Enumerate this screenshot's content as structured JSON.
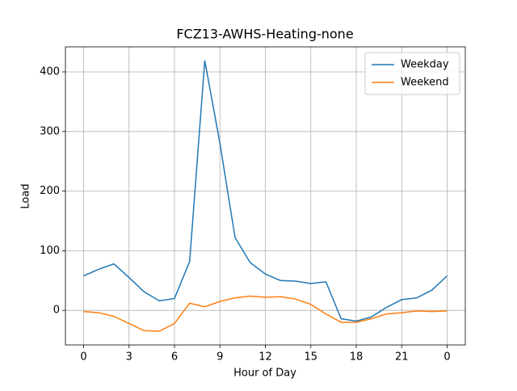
{
  "chart_data": {
    "type": "line",
    "title": "FCZ13-AWHS-Heating-none",
    "x_label": "Hour of Day",
    "y_label": "Load",
    "x": [
      0,
      1,
      2,
      3,
      4,
      5,
      6,
      7,
      8,
      9,
      10,
      11,
      12,
      13,
      14,
      15,
      16,
      17,
      18,
      19,
      20,
      21,
      22,
      23,
      24
    ],
    "series": [
      {
        "name": "Weekday",
        "color": "#1f77b4",
        "values": [
          58,
          69,
          78,
          55,
          31,
          16,
          20,
          82,
          419,
          280,
          122,
          80,
          61,
          50,
          49,
          45,
          48,
          -14,
          -18,
          -11,
          5,
          18,
          21,
          34,
          58
        ]
      },
      {
        "name": "Weekend",
        "color": "#ff7f0e",
        "values": [
          -2,
          -4,
          -10,
          -22,
          -34,
          -35,
          -22,
          12,
          6,
          15,
          21,
          24,
          22,
          23,
          19,
          10,
          -6,
          -20,
          -20,
          -14,
          -6,
          -4,
          -1,
          -2,
          -1
        ]
      }
    ],
    "xlim": [
      -1.2,
      25.2
    ],
    "ylim": [
      -58,
      442
    ],
    "xticks": [
      0,
      3,
      6,
      9,
      12,
      15,
      18,
      21,
      {
        "value": 24,
        "label": "0"
      }
    ],
    "yticks": [
      0,
      100,
      200,
      300,
      400
    ],
    "grid": true,
    "legend": "upper right"
  }
}
